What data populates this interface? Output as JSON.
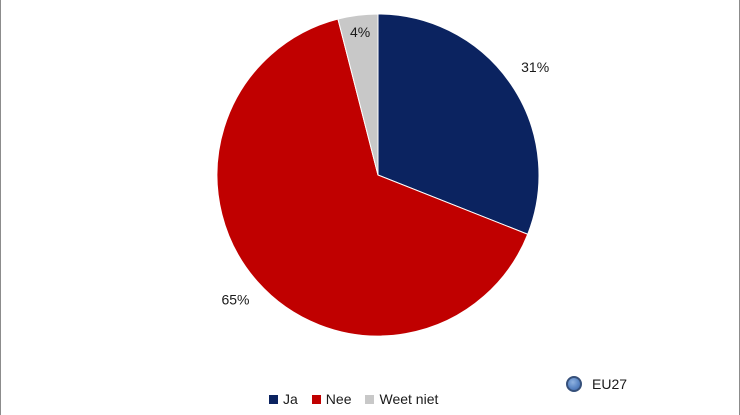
{
  "chart_data": {
    "type": "pie",
    "categories": [
      "Ja",
      "Nee",
      "Weet niet"
    ],
    "values": [
      31,
      65,
      4
    ],
    "data_labels": [
      "31%",
      "65%",
      "4%"
    ],
    "colors": [
      "#0b2360",
      "#c00000",
      "#c8c8c8"
    ],
    "start_angle": "12 o'clock",
    "direction": "clockwise",
    "legend_position": "bottom"
  },
  "badge": {
    "label": "EU27",
    "icon": "globe-dot-icon",
    "color": "#5b86c4"
  }
}
